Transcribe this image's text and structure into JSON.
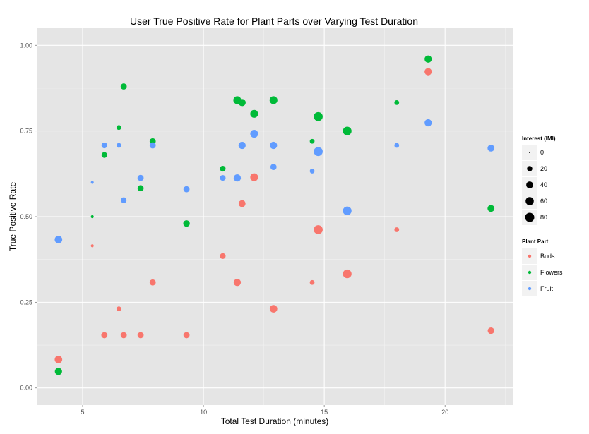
{
  "chart_data": {
    "type": "scatter",
    "title": "User True Positive Rate for Plant Parts over Varying Test Duration",
    "xlabel": "Total Test Duration (minutes)",
    "ylabel": "True Positive Rate",
    "xlim": [
      3.1,
      22.8
    ],
    "ylim": [
      -0.05,
      1.05
    ],
    "x_ticks": [
      5,
      10,
      15,
      20
    ],
    "x_tick_labels": [
      "5",
      "10",
      "15",
      "20"
    ],
    "y_ticks": [
      0,
      0.25,
      0.5,
      0.75,
      1
    ],
    "y_tick_labels": [
      "0.00",
      "0.25",
      "0.50",
      "0.75",
      "1.00"
    ],
    "grid": true,
    "legend_position": "right",
    "size_legend": {
      "title": "Interest (IMI)",
      "values": [
        0,
        20,
        40,
        60,
        80
      ],
      "labels": [
        "0",
        "20",
        "40",
        "60",
        "80"
      ],
      "size_range": [
        0,
        80
      ]
    },
    "color_legend": {
      "title": "Plant Part",
      "labels": [
        "Buds",
        "Flowers",
        "Fruit"
      ]
    },
    "colors": {
      "Buds": "#f8766d",
      "Flowers": "#00ba38",
      "Fruit": "#619cff"
    },
    "series": [
      {
        "name": "Buds",
        "points": [
          {
            "x": 4.0,
            "y": 0.083,
            "size": 50
          },
          {
            "x": 5.4,
            "y": 0.415,
            "size": 3
          },
          {
            "x": 5.9,
            "y": 0.154,
            "size": 30
          },
          {
            "x": 6.5,
            "y": 0.231,
            "size": 15
          },
          {
            "x": 6.7,
            "y": 0.154,
            "size": 30
          },
          {
            "x": 7.4,
            "y": 0.154,
            "size": 30
          },
          {
            "x": 7.9,
            "y": 0.308,
            "size": 30
          },
          {
            "x": 9.3,
            "y": 0.154,
            "size": 30
          },
          {
            "x": 10.8,
            "y": 0.385,
            "size": 25
          },
          {
            "x": 11.4,
            "y": 0.308,
            "size": 45
          },
          {
            "x": 11.6,
            "y": 0.538,
            "size": 40
          },
          {
            "x": 12.1,
            "y": 0.615,
            "size": 55
          },
          {
            "x": 12.9,
            "y": 0.231,
            "size": 50
          },
          {
            "x": 14.5,
            "y": 0.308,
            "size": 15
          },
          {
            "x": 14.75,
            "y": 0.462,
            "size": 75
          },
          {
            "x": 15.95,
            "y": 0.333,
            "size": 70
          },
          {
            "x": 18.0,
            "y": 0.462,
            "size": 15
          },
          {
            "x": 19.3,
            "y": 0.923,
            "size": 45
          },
          {
            "x": 21.9,
            "y": 0.167,
            "size": 35
          }
        ]
      },
      {
        "name": "Flowers",
        "points": [
          {
            "x": 4.0,
            "y": 0.048,
            "size": 45
          },
          {
            "x": 5.4,
            "y": 0.5,
            "size": 3
          },
          {
            "x": 5.9,
            "y": 0.68,
            "size": 25
          },
          {
            "x": 6.5,
            "y": 0.76,
            "size": 15
          },
          {
            "x": 6.7,
            "y": 0.88,
            "size": 30
          },
          {
            "x": 7.4,
            "y": 0.583,
            "size": 30
          },
          {
            "x": 7.9,
            "y": 0.72,
            "size": 30
          },
          {
            "x": 9.3,
            "y": 0.48,
            "size": 35
          },
          {
            "x": 10.8,
            "y": 0.64,
            "size": 25
          },
          {
            "x": 11.4,
            "y": 0.84,
            "size": 55
          },
          {
            "x": 11.6,
            "y": 0.833,
            "size": 45
          },
          {
            "x": 12.1,
            "y": 0.8,
            "size": 55
          },
          {
            "x": 12.9,
            "y": 0.84,
            "size": 55
          },
          {
            "x": 14.5,
            "y": 0.72,
            "size": 15
          },
          {
            "x": 14.75,
            "y": 0.792,
            "size": 75
          },
          {
            "x": 15.95,
            "y": 0.75,
            "size": 70
          },
          {
            "x": 18.0,
            "y": 0.833,
            "size": 15
          },
          {
            "x": 19.3,
            "y": 0.96,
            "size": 45
          },
          {
            "x": 21.9,
            "y": 0.524,
            "size": 40
          }
        ]
      },
      {
        "name": "Fruit",
        "points": [
          {
            "x": 4.0,
            "y": 0.433,
            "size": 50
          },
          {
            "x": 5.4,
            "y": 0.6,
            "size": 3
          },
          {
            "x": 5.9,
            "y": 0.708,
            "size": 25
          },
          {
            "x": 6.5,
            "y": 0.708,
            "size": 15
          },
          {
            "x": 6.7,
            "y": 0.548,
            "size": 25
          },
          {
            "x": 7.4,
            "y": 0.613,
            "size": 30
          },
          {
            "x": 7.9,
            "y": 0.708,
            "size": 30
          },
          {
            "x": 9.3,
            "y": 0.58,
            "size": 30
          },
          {
            "x": 10.8,
            "y": 0.613,
            "size": 25
          },
          {
            "x": 11.4,
            "y": 0.613,
            "size": 45
          },
          {
            "x": 11.6,
            "y": 0.708,
            "size": 45
          },
          {
            "x": 12.1,
            "y": 0.742,
            "size": 55
          },
          {
            "x": 12.9,
            "y": 0.645,
            "size": 30
          },
          {
            "x": 12.9,
            "y": 0.708,
            "size": 45
          },
          {
            "x": 14.5,
            "y": 0.633,
            "size": 15
          },
          {
            "x": 14.75,
            "y": 0.69,
            "size": 75
          },
          {
            "x": 15.95,
            "y": 0.517,
            "size": 70
          },
          {
            "x": 18.0,
            "y": 0.708,
            "size": 15
          },
          {
            "x": 19.3,
            "y": 0.774,
            "size": 45
          },
          {
            "x": 21.9,
            "y": 0.7,
            "size": 40
          }
        ]
      }
    ]
  }
}
